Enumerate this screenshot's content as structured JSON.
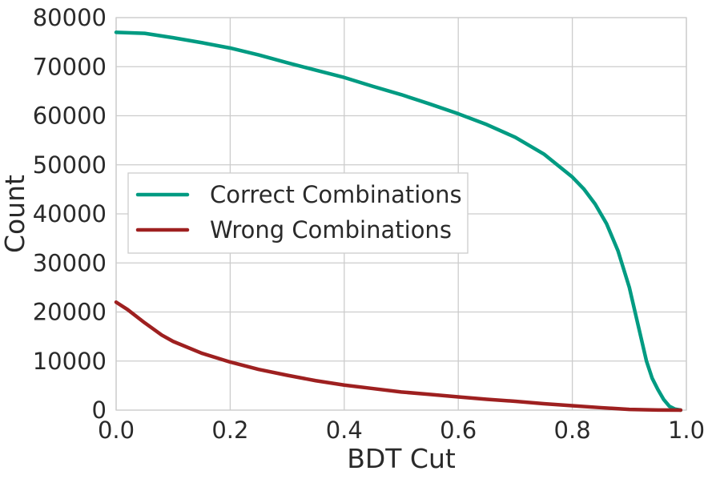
{
  "chart_data": {
    "type": "line",
    "xlabel": "BDT Cut",
    "ylabel": "Count",
    "xlim": [
      0.0,
      1.0
    ],
    "ylim": [
      0,
      80000
    ],
    "xticks": [
      "0.0",
      "0.2",
      "0.4",
      "0.6",
      "0.8",
      "1.0"
    ],
    "yticks": [
      "0",
      "10000",
      "20000",
      "30000",
      "40000",
      "50000",
      "60000",
      "70000",
      "80000"
    ],
    "grid": true,
    "legend_position": "center-left",
    "series": [
      {
        "name": "Correct Combinations",
        "color": "#009b82",
        "x": [
          0.0,
          0.05,
          0.1,
          0.15,
          0.2,
          0.25,
          0.3,
          0.35,
          0.4,
          0.45,
          0.5,
          0.55,
          0.6,
          0.65,
          0.7,
          0.75,
          0.8,
          0.82,
          0.84,
          0.86,
          0.88,
          0.9,
          0.91,
          0.92,
          0.93,
          0.94,
          0.95,
          0.96,
          0.97,
          0.98,
          0.99
        ],
        "y": [
          77000,
          76800,
          75900,
          74900,
          73800,
          72400,
          70800,
          69300,
          67800,
          66000,
          64300,
          62400,
          60400,
          58200,
          55600,
          52200,
          47500,
          45100,
          42000,
          38000,
          32500,
          25000,
          20000,
          15000,
          10000,
          6500,
          4200,
          2200,
          800,
          200,
          0
        ]
      },
      {
        "name": "Wrong Combinations",
        "color": "#9e2020",
        "x": [
          0.0,
          0.02,
          0.05,
          0.08,
          0.1,
          0.15,
          0.2,
          0.25,
          0.3,
          0.35,
          0.4,
          0.45,
          0.5,
          0.55,
          0.6,
          0.65,
          0.7,
          0.75,
          0.8,
          0.85,
          0.9,
          0.95,
          0.99
        ],
        "y": [
          22000,
          20500,
          17800,
          15300,
          14000,
          11600,
          9800,
          8300,
          7100,
          6000,
          5100,
          4400,
          3700,
          3200,
          2700,
          2200,
          1800,
          1300,
          900,
          500,
          150,
          20,
          0
        ]
      }
    ]
  }
}
